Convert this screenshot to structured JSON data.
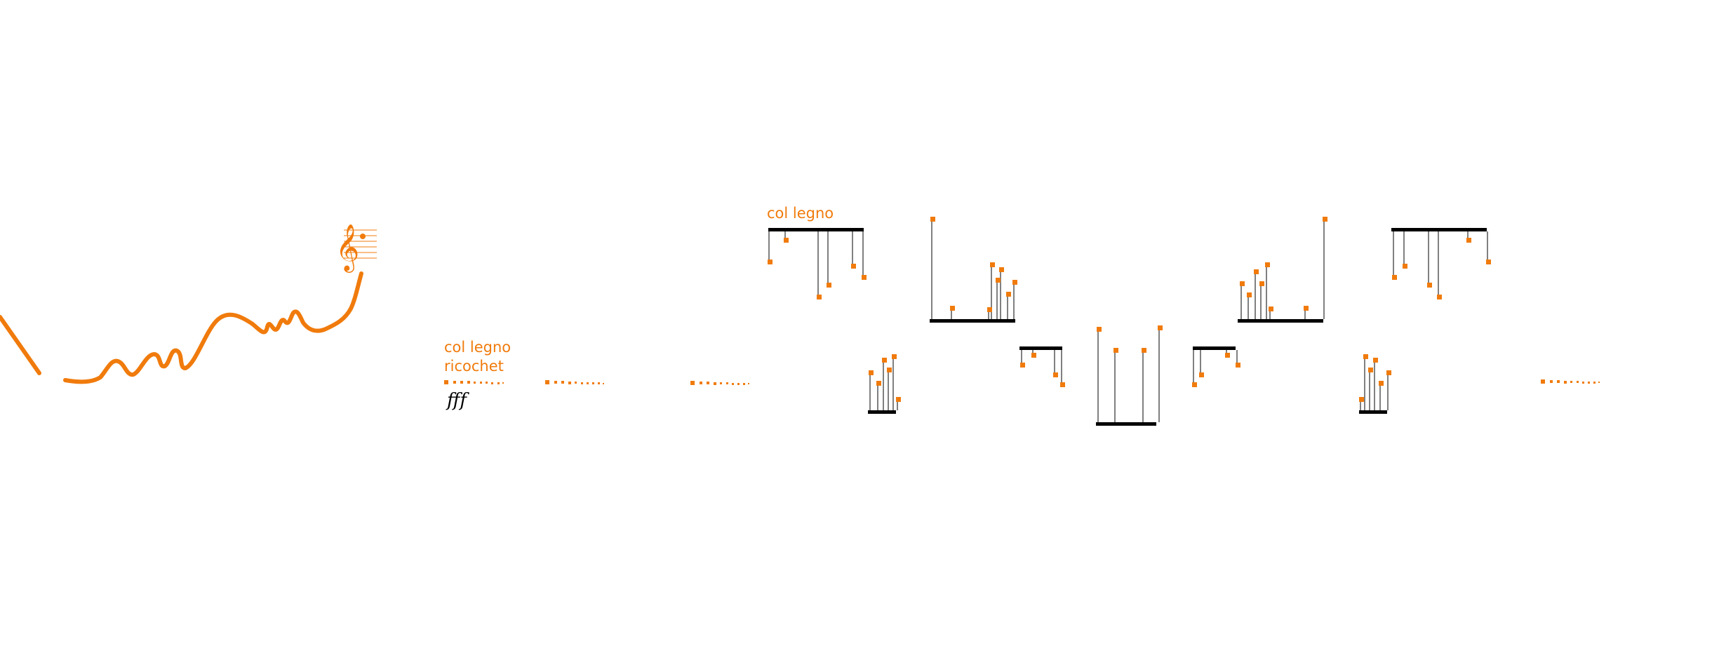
{
  "colors": {
    "accent": "#f07b0c",
    "ink": "#000000",
    "background": "#ffffff"
  },
  "icons": {
    "treble_clef": "𝄞"
  },
  "annotations": {
    "upper_technique": "col legno",
    "lower_technique_line1": "col legno",
    "lower_technique_line2": "ricochet",
    "dynamic": "fff"
  }
}
